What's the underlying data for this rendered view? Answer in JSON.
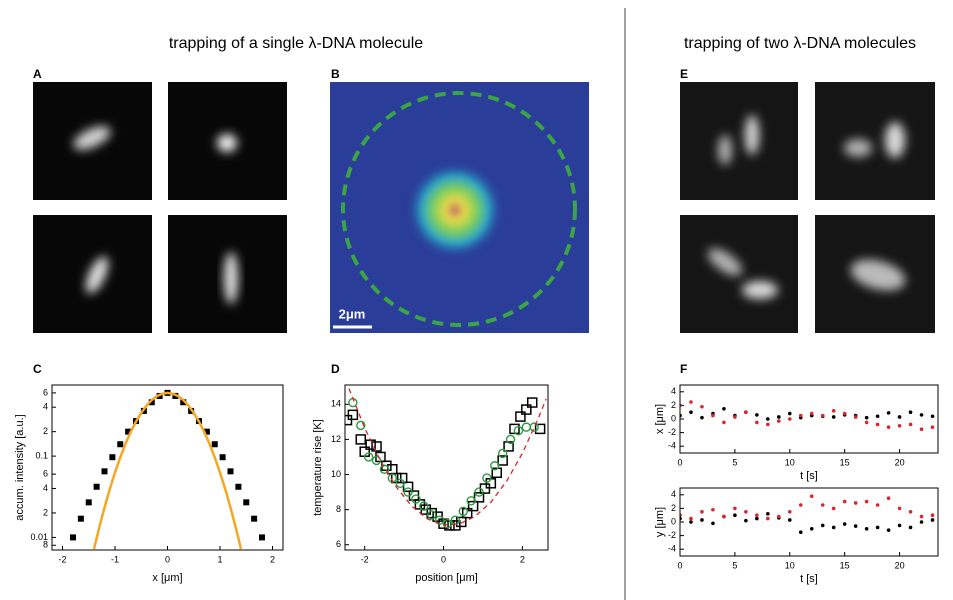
{
  "headings": [
    "trapping of a single λ-DNA molecule",
    "trapping of two λ-DNA molecules"
  ],
  "panel_labels": [
    "A",
    "B",
    "C",
    "D",
    "E",
    "F"
  ],
  "scale_bar": "2μm",
  "chart_data": [
    {
      "type": "scatter",
      "xlabel": "x [μm]",
      "ylabel": "accum. intensity [a.u.]",
      "xlim": [
        -2.2,
        2.2
      ],
      "ylim": [
        0.007,
        0.75
      ],
      "ylog": true,
      "xticks": [
        -2,
        -1,
        0,
        1,
        2
      ],
      "yticks": [
        {
          "value": 0.6,
          "label": "6"
        },
        {
          "value": 0.4,
          "label": "4"
        },
        {
          "value": 0.2,
          "label": "2"
        },
        0.1,
        {
          "value": 0.06,
          "label": "6"
        },
        {
          "value": 0.04,
          "label": "4"
        },
        {
          "value": 0.02,
          "label": "2"
        },
        0.01,
        {
          "value": 0.008,
          "label": "8"
        }
      ],
      "series": [
        {
          "marker": "filled-square",
          "color": "#000000",
          "x": [
            -1.8,
            -1.65,
            -1.5,
            -1.35,
            -1.2,
            -1.05,
            -0.9,
            -0.75,
            -0.6,
            -0.45,
            -0.3,
            -0.15,
            0,
            0.15,
            0.3,
            0.45,
            0.6,
            0.75,
            0.9,
            1.05,
            1.2,
            1.35,
            1.5,
            1.65,
            1.8
          ],
          "values": [
            0.01,
            0.017,
            0.027,
            0.042,
            0.065,
            0.097,
            0.14,
            0.2,
            0.27,
            0.36,
            0.46,
            0.55,
            0.6,
            0.55,
            0.46,
            0.36,
            0.27,
            0.2,
            0.14,
            0.097,
            0.065,
            0.042,
            0.027,
            0.017,
            0.01
          ]
        },
        {
          "line": "solid",
          "color": "#f5a623",
          "x": [
            -1.4,
            -1.3,
            -1.2,
            -1.1,
            -1.0,
            -0.9,
            -0.8,
            -0.7,
            -0.6,
            -0.5,
            -0.4,
            -0.3,
            -0.2,
            -0.1,
            0,
            0.1,
            0.2,
            0.3,
            0.4,
            0.5,
            0.6,
            0.7,
            0.8,
            0.9,
            1.0,
            1.1,
            1.2,
            1.3,
            1.4
          ],
          "values": [
            0.0072,
            0.0132,
            0.0233,
            0.0392,
            0.0628,
            0.0963,
            0.142,
            0.199,
            0.266,
            0.34,
            0.418,
            0.49,
            0.548,
            0.586,
            0.6,
            0.586,
            0.548,
            0.49,
            0.418,
            0.34,
            0.266,
            0.199,
            0.142,
            0.0963,
            0.0628,
            0.0392,
            0.0233,
            0.0132,
            0.0072
          ]
        }
      ]
    },
    {
      "type": "scatter",
      "xlabel": "position [μm]",
      "ylabel": "temperature rise [K]",
      "xlim": [
        -2.5,
        2.65
      ],
      "ylim": [
        5.7,
        15.1
      ],
      "xticks": [
        -2,
        0,
        2
      ],
      "yticks": [
        6,
        8,
        10,
        12,
        14
      ],
      "series": [
        {
          "marker": "open-square",
          "color": "#000000",
          "x": [
            -2.45,
            -2.3,
            -2.1,
            -2.0,
            -1.85,
            -1.7,
            -1.6,
            -1.45,
            -1.3,
            -1.2,
            -1.05,
            -0.9,
            -0.75,
            -0.6,
            -0.45,
            -0.3,
            -0.15,
            0,
            0.15,
            0.3,
            0.45,
            0.6,
            0.75,
            0.9,
            1.05,
            1.2,
            1.35,
            1.5,
            1.65,
            1.8,
            1.95,
            2.1,
            2.25,
            2.45
          ],
          "values": [
            13.1,
            13.4,
            12,
            11.3,
            11.7,
            11.6,
            11,
            10.5,
            10.3,
            9.8,
            9.8,
            9.3,
            8.8,
            8.3,
            8.0,
            7.8,
            7.6,
            7.2,
            7.1,
            7.1,
            7.3,
            7.8,
            8.2,
            8.7,
            9.2,
            9.5,
            10.1,
            10.8,
            11.6,
            12.6,
            13.3,
            13.7,
            14.1,
            12.6
          ]
        },
        {
          "marker": "open-circle",
          "color": "#2e9a3e",
          "x": [
            -2.3,
            -2.1,
            -1.9,
            -1.7,
            -1.5,
            -1.3,
            -1.1,
            -0.9,
            -0.7,
            -0.5,
            -0.3,
            -0.1,
            0.1,
            0.3,
            0.5,
            0.7,
            0.9,
            1.1,
            1.3,
            1.5,
            1.7,
            1.9,
            2.1,
            2.3
          ],
          "values": [
            14.1,
            12.8,
            11,
            10.8,
            10.3,
            9.8,
            9.5,
            9,
            8.6,
            8.2,
            7.7,
            7.4,
            7.2,
            7.4,
            7.9,
            8.5,
            9,
            9.8,
            10.5,
            11.2,
            12,
            12.5,
            12.7,
            12.7
          ]
        },
        {
          "line": "dashed",
          "color": "#d9262b",
          "x": [
            -2.4,
            -2.0,
            -1.6,
            -1.2,
            -0.8,
            -0.4,
            0,
            0.4,
            0.8,
            1.2,
            1.6,
            2.0,
            2.4,
            2.6
          ],
          "values": [
            14.9,
            12.65,
            10.78,
            9.29,
            8.18,
            7.46,
            7.13,
            7.18,
            7.61,
            8.42,
            9.62,
            11.21,
            13.18,
            14.3
          ]
        }
      ]
    },
    {
      "type": "scatter",
      "xlabel": "t [s]",
      "ylabel": "x [μm]",
      "xlim": [
        0,
        23.5
      ],
      "ylim": [
        -5,
        5
      ],
      "xticks": [
        0,
        5,
        10,
        15,
        20
      ],
      "yticks": [
        -4,
        -2,
        0,
        2,
        4
      ],
      "series": [
        {
          "marker": "dot",
          "color": "#000000",
          "x": [
            0,
            1,
            2,
            3,
            4,
            5,
            6,
            7,
            8,
            9,
            10,
            11,
            12,
            13,
            14,
            15,
            16,
            17,
            18,
            19,
            20,
            21,
            22,
            23
          ],
          "values": [
            0.5,
            1,
            0.2,
            0.8,
            1.5,
            0.5,
            1,
            0.6,
            0,
            0.3,
            0.8,
            0.2,
            0.5,
            0.4,
            0.3,
            0.6,
            0.5,
            0.2,
            0.4,
            0.9,
            0.3,
            1,
            0.6,
            0.4
          ]
        },
        {
          "marker": "dot",
          "color": "#d9262b",
          "x": [
            0,
            1,
            2,
            3,
            4,
            5,
            6,
            7,
            8,
            9,
            10,
            11,
            12,
            13,
            14,
            15,
            16,
            17,
            18,
            19,
            20,
            21,
            22,
            23
          ],
          "values": [
            2,
            2.5,
            1.8,
            0.5,
            -0.5,
            0.3,
            1,
            -0.5,
            -0.8,
            -0.3,
            0,
            0.5,
            0.8,
            0.5,
            1.2,
            0.8,
            0.3,
            -0.5,
            -0.8,
            -1.2,
            -1,
            -0.8,
            -1.5,
            -1.2
          ]
        }
      ]
    },
    {
      "type": "scatter",
      "xlabel": "t [s]",
      "ylabel": "y [μm]",
      "xlim": [
        0,
        23.5
      ],
      "ylim": [
        -5,
        5
      ],
      "xticks": [
        0,
        5,
        10,
        15,
        20
      ],
      "yticks": [
        -4,
        -2,
        0,
        2,
        4
      ],
      "series": [
        {
          "marker": "dot",
          "color": "#000000",
          "x": [
            0,
            1,
            2,
            3,
            4,
            5,
            6,
            7,
            8,
            9,
            10,
            11,
            12,
            13,
            14,
            15,
            16,
            17,
            18,
            19,
            20,
            21,
            22,
            23
          ],
          "values": [
            0.5,
            0,
            0.3,
            -0.2,
            0.8,
            1,
            0.2,
            0.5,
            1.2,
            0.6,
            0.3,
            -1.5,
            -1,
            -0.5,
            -0.8,
            -0.3,
            -0.6,
            -1,
            -0.8,
            -1.2,
            -0.5,
            -0.8,
            0,
            0.3
          ]
        },
        {
          "marker": "dot",
          "color": "#d9262b",
          "x": [
            0,
            1,
            2,
            3,
            4,
            5,
            6,
            7,
            8,
            9,
            10,
            11,
            12,
            13,
            14,
            15,
            16,
            17,
            18,
            19,
            20,
            21,
            22,
            23
          ],
          "values": [
            1,
            0.5,
            1.5,
            1.8,
            0.8,
            2,
            1.5,
            1,
            0.5,
            0.8,
            1.5,
            2.5,
            3.8,
            2.5,
            2,
            3,
            2.8,
            3,
            2.5,
            3.5,
            2,
            1.5,
            0.8,
            1
          ]
        }
      ]
    }
  ]
}
